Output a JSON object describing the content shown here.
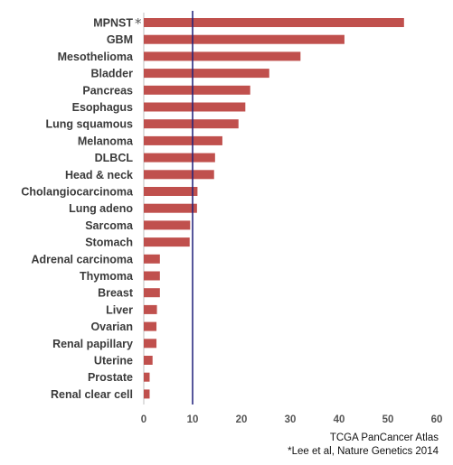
{
  "chart_data": {
    "type": "bar",
    "orientation": "horizontal",
    "categories": [
      "MPNST",
      "GBM",
      "Mesothelioma",
      "Bladder",
      "Pancreas",
      "Esophagus",
      "Lung squamous",
      "Melanoma",
      "DLBCL",
      "Head & neck",
      "Cholangiocarcinoma",
      "Lung adeno",
      "Sarcoma",
      "Stomach",
      "Adrenal carcinoma",
      "Thymoma",
      "Breast",
      "Liver",
      "Ovarian",
      "Renal papillary",
      "Uterine",
      "Prostate",
      "Renal clear cell"
    ],
    "values": [
      53.3,
      41.1,
      32.1,
      25.7,
      21.8,
      20.8,
      19.4,
      16.1,
      14.6,
      14.4,
      11.0,
      10.9,
      9.5,
      9.4,
      3.3,
      3.3,
      3.3,
      2.7,
      2.6,
      2.6,
      1.8,
      1.2,
      1.2
    ],
    "annotated_category": "MPNST",
    "annotation_mark": "*",
    "xlim": [
      0,
      60
    ],
    "xticks": [
      0,
      10,
      20,
      30,
      40,
      50,
      60
    ],
    "reference_line_x": 10,
    "bar_color": "#c0504d",
    "reference_line_color": "#1f1f7a",
    "grid": false,
    "legend": "none"
  },
  "sources": {
    "line1": "TCGA PanCancer Atlas",
    "line2": "*Lee et al, Nature Genetics 2014"
  }
}
